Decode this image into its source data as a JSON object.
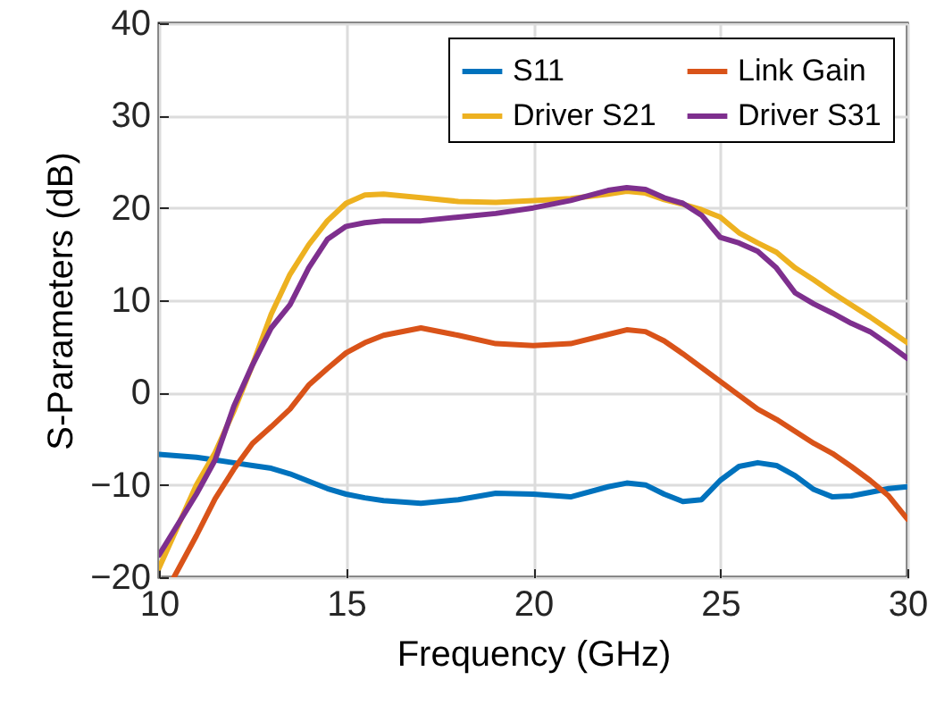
{
  "chart_data": {
    "type": "line",
    "xlabel": "Frequency (GHz)",
    "ylabel": "S-Parameters (dB)",
    "x": [
      10,
      11,
      11.5,
      12,
      12.5,
      13,
      13.5,
      14,
      14.5,
      15,
      15.5,
      16,
      17,
      18,
      19,
      20,
      21,
      22,
      22.5,
      23,
      23.5,
      24,
      24.5,
      25,
      25.5,
      26,
      26.5,
      27,
      27.5,
      28,
      28.5,
      29,
      29.5,
      30
    ],
    "xlim": [
      10,
      30
    ],
    "xticks": [
      10,
      15,
      20,
      25,
      30
    ],
    "ylim": [
      -20,
      40
    ],
    "yticks": [
      -20,
      -10,
      0,
      10,
      20,
      30,
      40
    ],
    "grid": true,
    "legend": "top right",
    "series": [
      {
        "name": "S11",
        "color": "#0072bd",
        "values": [
          -6.7,
          -7.0,
          -7.3,
          -7.6,
          -7.9,
          -8.2,
          -8.8,
          -9.6,
          -10.4,
          -11.0,
          -11.4,
          -11.7,
          -12.0,
          -11.6,
          -10.9,
          -11.0,
          -11.3,
          -10.2,
          -9.8,
          -10.0,
          -11.0,
          -11.8,
          -11.6,
          -9.5,
          -8.0,
          -7.6,
          -7.9,
          -9.0,
          -10.5,
          -11.3,
          -11.2,
          -10.8,
          -10.4,
          -10.2
        ]
      },
      {
        "name": "Link Gain",
        "color": "#d95319",
        "x": [
          10.4,
          11,
          11.5,
          12,
          12.5,
          13,
          13.5,
          14,
          14.5,
          15,
          15.5,
          16,
          17,
          18,
          19,
          20,
          21,
          22,
          22.5,
          23,
          23.5,
          24,
          24.5,
          25,
          25.5,
          26,
          26.5,
          27,
          27.5,
          28,
          28.5,
          29,
          29.5,
          30
        ],
        "values": [
          -20,
          -15.5,
          -11.5,
          -8.3,
          -5.5,
          -3.7,
          -1.8,
          0.8,
          2.6,
          4.3,
          5.4,
          6.2,
          7.0,
          6.2,
          5.3,
          5.1,
          5.3,
          6.3,
          6.8,
          6.6,
          5.6,
          4.2,
          2.7,
          1.2,
          -0.3,
          -1.8,
          -2.9,
          -4.2,
          -5.5,
          -6.6,
          -8.0,
          -9.5,
          -11.2,
          -13.7
        ]
      },
      {
        "name": "Driver S21",
        "color": "#edb120",
        "values": [
          -19,
          -10,
          -6.5,
          -2,
          3,
          8.5,
          12.8,
          16,
          18.6,
          20.5,
          21.4,
          21.5,
          21.1,
          20.7,
          20.6,
          20.8,
          21.0,
          21.5,
          21.8,
          21.6,
          20.9,
          20.4,
          19.8,
          19.0,
          17.3,
          16.2,
          15.2,
          13.5,
          12.2,
          10.8,
          9.5,
          8.2,
          6.8,
          5.4
        ]
      },
      {
        "name": "Driver S31",
        "color": "#7e2f8e",
        "values": [
          -17.6,
          -11,
          -7.3,
          -1.5,
          3,
          7,
          9.5,
          13.5,
          16.6,
          18,
          18.4,
          18.6,
          18.6,
          19.0,
          19.4,
          20,
          20.8,
          21.9,
          22.2,
          22.0,
          21.1,
          20.5,
          19.2,
          16.8,
          16.2,
          15.3,
          13.5,
          10.8,
          9.6,
          8.6,
          7.5,
          6.6,
          5.2,
          3.7
        ]
      }
    ]
  }
}
